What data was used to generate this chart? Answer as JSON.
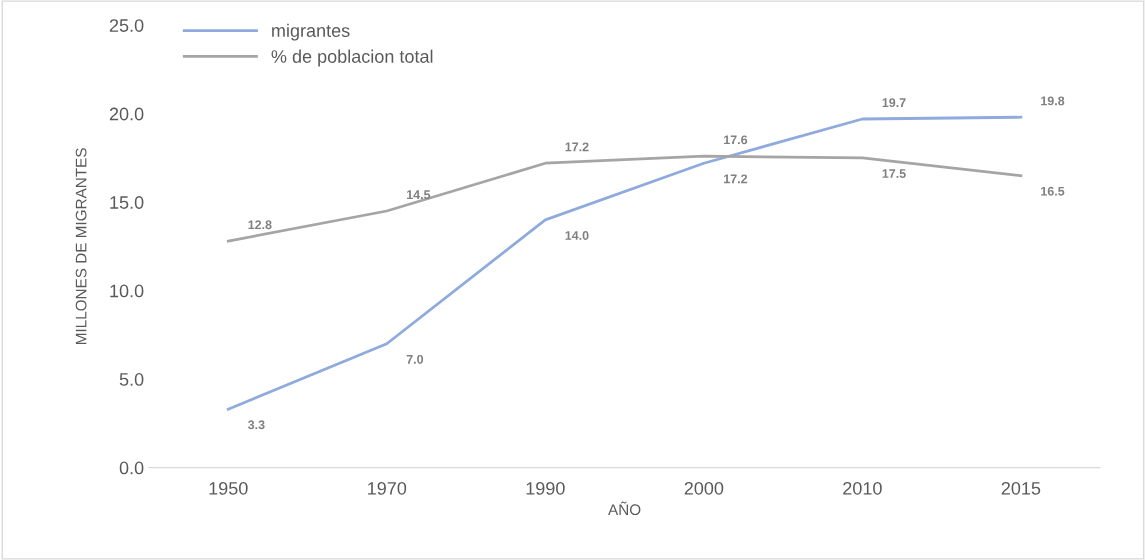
{
  "chart_data": {
    "type": "line",
    "xlabel": "AÑO",
    "ylabel": "MILLONES DE MIGRANTES",
    "categories": [
      "1950",
      "1970",
      "1990",
      "2000",
      "2010",
      "2015"
    ],
    "series": [
      {
        "name": "migrantes",
        "color": "#8faadc",
        "values": [
          3.3,
          7.0,
          14.0,
          17.2,
          19.7,
          19.8
        ],
        "value_labels": [
          "3.3",
          "7.0",
          "14.0",
          "17.2",
          "19.7",
          "19.8"
        ]
      },
      {
        "name": "% de poblacion total",
        "color": "#a5a5a5",
        "values": [
          12.8,
          14.5,
          17.2,
          17.6,
          17.5,
          16.5
        ],
        "value_labels": [
          "12.8",
          "14.5",
          "17.2",
          "17.6",
          "17.5",
          "16.5"
        ]
      }
    ],
    "ylim": [
      0,
      25
    ],
    "yticks": [
      {
        "value": 0,
        "label": "0.0"
      },
      {
        "value": 5,
        "label": "5.0"
      },
      {
        "value": 10,
        "label": "10.0"
      },
      {
        "value": 15,
        "label": "15.0"
      },
      {
        "value": 20,
        "label": "20.0"
      },
      {
        "value": 25,
        "label": "25.0"
      }
    ],
    "legend": "top left",
    "grid": false,
    "marker": "none",
    "line_style": "solid"
  }
}
